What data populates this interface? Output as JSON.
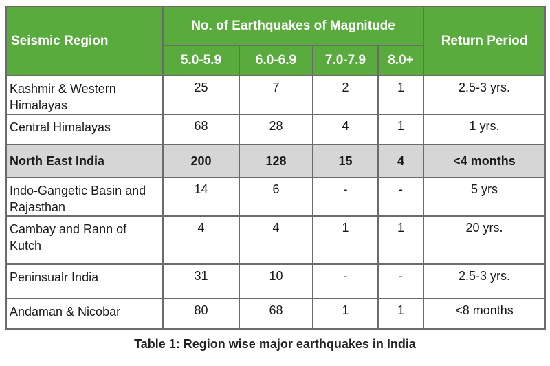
{
  "table": {
    "header": {
      "region": "Seismic Region",
      "magnitude_group": "No. of Earthquakes of Magnitude",
      "return_period": "Return Period",
      "magnitudes": [
        "5.0-5.9",
        "6.0-6.9",
        "7.0-7.9",
        "8.0+"
      ]
    },
    "rows": [
      {
        "region": "Kashmir & Western Himalayas",
        "m5": "25",
        "m6": "7",
        "m7": "2",
        "m8": "1",
        "period": "2.5-3 yrs."
      },
      {
        "region": "Central Himalayas",
        "m5": "68",
        "m6": "28",
        "m7": "4",
        "m8": "1",
        "period": "1 yrs."
      },
      {
        "region": "North East India",
        "m5": "200",
        "m6": "128",
        "m7": "15",
        "m8": "4",
        "period": "<4 months"
      },
      {
        "region": "Indo-Gangetic Basin and Rajasthan",
        "m5": "14",
        "m6": "6",
        "m7": "-",
        "m8": "-",
        "period": "5 yrs"
      },
      {
        "region": "Cambay and Rann of Kutch",
        "m5": "4",
        "m6": "4",
        "m7": "1",
        "m8": "1",
        "period": "20 yrs."
      },
      {
        "region": "Peninsualr India",
        "m5": "31",
        "m6": "10",
        "m7": "-",
        "m8": "-",
        "period": "2.5-3 yrs."
      },
      {
        "region": "Andaman & Nicobar",
        "m5": "80",
        "m6": "68",
        "m7": "1",
        "m8": "1",
        "period": "<8 months"
      }
    ]
  },
  "caption": "Table 1: Region wise major earthquakes in India",
  "colors": {
    "header_bg": "#5aab3e",
    "highlight_row_bg": "#d6d6d6",
    "border": "#6b6b6b"
  }
}
